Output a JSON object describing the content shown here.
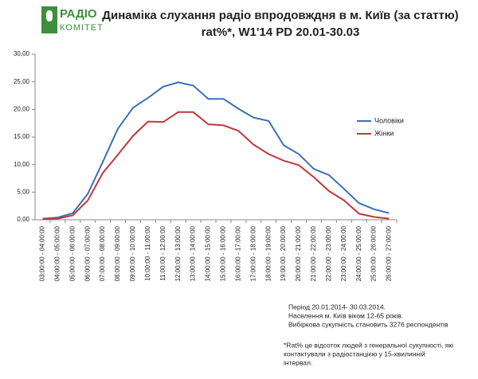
{
  "chart_data": {
    "type": "line",
    "logo": [
      "РАДІО",
      "КОМІТЕТ"
    ],
    "title": "Динаміка слухання радіо впродовждня в м. Київ (за статтю)",
    "subtitle": "rat%*, W1'14 PD 20.01-30.03",
    "categories": [
      "03:00:00 - 04:00:00",
      "04:00:00 - 05:00:00",
      "05:00:00 - 06:00:00",
      "06:00:00 - 07:00:00",
      "07:00:00 - 08:00:00",
      "08:00:00 - 09:00:00",
      "09:00:00 - 10:00:00",
      "10:00:00 - 11:00:00",
      "11:00:00 - 12:00:00",
      "12:00:00 - 13:00:00",
      "13:00:00 - 14:00:00",
      "14:00:00 - 15:00:00",
      "15:00:00 - 16:00:00",
      "16:00:00 - 17:00:00",
      "17:00:00 - 18:00:00",
      "18:00:00 - 19:00:00",
      "19:00:00 - 20:00:00",
      "20:00:00 - 21:00:00",
      "21:00:00 - 22:00:00",
      "22:00:00 - 23:00:00",
      "23:00:00 - 24:00:00",
      "24:00:00 - 25:00:00",
      "25:00:00 - 26:00:00",
      "26:00:00 - 27:00:00"
    ],
    "series": [
      {
        "name": "Чоловіки",
        "color": "#3a6fb5",
        "values": [
          0.2,
          0.4,
          1.2,
          4.7,
          10.5,
          16.5,
          20.3,
          22.1,
          24.1,
          24.9,
          24.3,
          21.9,
          21.9,
          20.1,
          18.5,
          17.9,
          13.5,
          11.9,
          9.2,
          8.1,
          5.6,
          3.0,
          1.9,
          1.2
        ]
      },
      {
        "name": "Жінки",
        "color": "#c0393b",
        "values": [
          0.1,
          0.2,
          0.8,
          3.5,
          8.5,
          11.8,
          15.2,
          17.8,
          17.7,
          19.5,
          19.5,
          17.3,
          17.1,
          16.1,
          13.6,
          11.9,
          10.7,
          9.9,
          7.7,
          5.2,
          3.5,
          1.1,
          0.5,
          0.2
        ]
      }
    ],
    "ylim": [
      0,
      30
    ],
    "yticks": [
      {
        "value": 0,
        "label": "0,00"
      },
      {
        "value": 5,
        "label": "5,00"
      },
      {
        "value": 10,
        "label": "10,00"
      },
      {
        "value": 15,
        "label": "15,00"
      },
      {
        "value": 20,
        "label": "20,00"
      },
      {
        "value": 25,
        "label": "25,00"
      },
      {
        "value": 30,
        "label": "30,00"
      }
    ],
    "grid": false,
    "legend": "right",
    "annotations": [
      "Період 20.01.2014- 30.03.2014.",
      "Населення м. Київ віком 12-65 років.",
      "Вибіркова сукупність становить 3276 респондентів"
    ],
    "footnote": [
      "*Rat% це відсоток людей з генеральної сукупності, які",
      "контактували з радіостанцією у 15-хвилинній",
      "інтервал."
    ]
  }
}
